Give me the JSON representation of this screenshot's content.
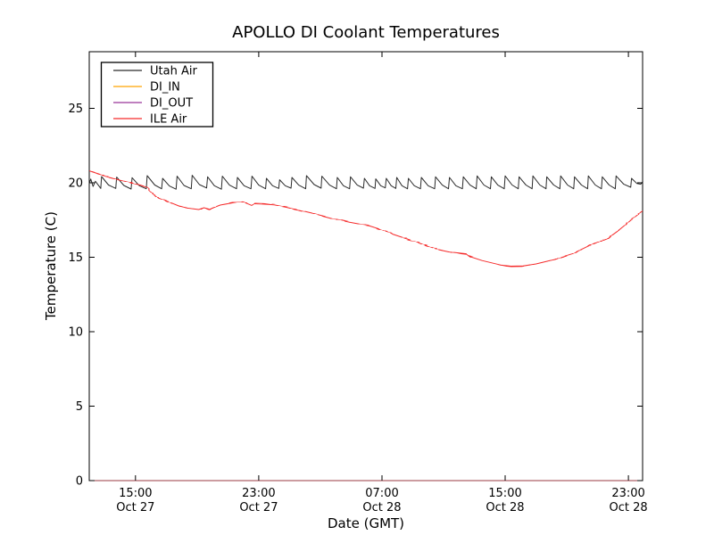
{
  "figure_background": "#ffffff",
  "chart_data": {
    "type": "line",
    "title": "APOLLO DI Coolant Temperatures",
    "xlabel": "Date (GMT)",
    "ylabel": "Temperature (C)",
    "grid": false,
    "legend_position": "upper left",
    "x_unit": "hours since Oct 27 12:00 GMT",
    "xlim": [
      0,
      35.92
    ],
    "ylim": [
      0,
      28.8
    ],
    "yticks": [
      {
        "value": 0,
        "label": "0"
      },
      {
        "value": 5,
        "label": "5"
      },
      {
        "value": 10,
        "label": "10"
      },
      {
        "value": 15,
        "label": "15"
      },
      {
        "value": 20,
        "label": "20"
      },
      {
        "value": 25,
        "label": "25"
      }
    ],
    "xticks": [
      {
        "hour": 3,
        "line1": "15:00",
        "line2": "Oct 27"
      },
      {
        "hour": 11,
        "line1": "23:00",
        "line2": "Oct 27"
      },
      {
        "hour": 19,
        "line1": "07:00",
        "line2": "Oct 28"
      },
      {
        "hour": 27,
        "line1": "15:00",
        "line2": "Oct 28"
      },
      {
        "hour": 35,
        "line1": "23:00",
        "line2": "Oct 28"
      }
    ],
    "series": [
      {
        "name": "Utah Air",
        "color": "#2b2b2b",
        "opacity": 1,
        "noisy": false,
        "points": [
          [
            0,
            19.95
          ],
          [
            0.1,
            20.25
          ],
          [
            0.25,
            19.75
          ],
          [
            0.4,
            20.1
          ],
          [
            0.75,
            19.62
          ],
          [
            0.8,
            20.42
          ],
          [
            1.25,
            19.85
          ],
          [
            1.72,
            19.62
          ],
          [
            1.78,
            20.38
          ],
          [
            2.25,
            19.82
          ],
          [
            2.72,
            19.58
          ],
          [
            2.78,
            20.34
          ],
          [
            3.25,
            19.8
          ],
          [
            3.7,
            19.6
          ],
          [
            3.76,
            20.48
          ],
          [
            4.25,
            19.85
          ],
          [
            4.7,
            19.6
          ],
          [
            4.76,
            20.3
          ],
          [
            5.2,
            19.78
          ],
          [
            5.64,
            19.57
          ],
          [
            5.7,
            20.44
          ],
          [
            6.15,
            19.82
          ],
          [
            6.62,
            19.6
          ],
          [
            6.68,
            20.5
          ],
          [
            7.15,
            19.88
          ],
          [
            7.62,
            19.65
          ],
          [
            7.68,
            20.4
          ],
          [
            8.12,
            19.8
          ],
          [
            8.58,
            19.57
          ],
          [
            8.64,
            20.44
          ],
          [
            9.1,
            19.84
          ],
          [
            9.56,
            19.6
          ],
          [
            9.62,
            20.36
          ],
          [
            10.05,
            19.8
          ],
          [
            10.5,
            19.6
          ],
          [
            10.56,
            20.44
          ],
          [
            11.0,
            19.84
          ],
          [
            11.45,
            19.6
          ],
          [
            11.5,
            20.3
          ],
          [
            11.9,
            19.8
          ],
          [
            12.3,
            19.62
          ],
          [
            12.36,
            20.2
          ],
          [
            12.72,
            19.8
          ],
          [
            13.1,
            19.64
          ],
          [
            13.16,
            20.36
          ],
          [
            13.6,
            19.84
          ],
          [
            14.05,
            19.6
          ],
          [
            14.1,
            20.48
          ],
          [
            14.6,
            19.88
          ],
          [
            15.05,
            19.64
          ],
          [
            15.1,
            20.44
          ],
          [
            15.6,
            19.84
          ],
          [
            16.05,
            19.6
          ],
          [
            16.1,
            20.36
          ],
          [
            16.5,
            19.8
          ],
          [
            16.9,
            19.6
          ],
          [
            16.96,
            20.4
          ],
          [
            17.4,
            19.84
          ],
          [
            17.8,
            19.64
          ],
          [
            17.86,
            20.3
          ],
          [
            18.2,
            19.8
          ],
          [
            18.55,
            19.62
          ],
          [
            18.6,
            20.26
          ],
          [
            18.92,
            19.8
          ],
          [
            19.22,
            19.66
          ],
          [
            19.28,
            20.3
          ],
          [
            19.6,
            19.8
          ],
          [
            19.9,
            19.62
          ],
          [
            19.96,
            20.36
          ],
          [
            20.3,
            19.8
          ],
          [
            20.66,
            19.6
          ],
          [
            20.72,
            20.3
          ],
          [
            21.1,
            19.8
          ],
          [
            21.5,
            19.6
          ],
          [
            21.56,
            20.36
          ],
          [
            22.0,
            19.8
          ],
          [
            22.42,
            19.6
          ],
          [
            22.48,
            20.4
          ],
          [
            22.92,
            19.84
          ],
          [
            23.32,
            19.6
          ],
          [
            23.38,
            20.36
          ],
          [
            23.8,
            19.8
          ],
          [
            24.22,
            19.6
          ],
          [
            24.28,
            20.4
          ],
          [
            24.72,
            19.84
          ],
          [
            25.12,
            19.6
          ],
          [
            25.18,
            20.46
          ],
          [
            25.62,
            19.85
          ],
          [
            26.04,
            19.6
          ],
          [
            26.1,
            20.4
          ],
          [
            26.52,
            19.84
          ],
          [
            26.94,
            19.6
          ],
          [
            27.0,
            20.46
          ],
          [
            27.45,
            19.85
          ],
          [
            27.85,
            19.6
          ],
          [
            27.9,
            20.4
          ],
          [
            28.35,
            19.85
          ],
          [
            28.75,
            19.6
          ],
          [
            28.8,
            20.46
          ],
          [
            29.25,
            19.85
          ],
          [
            29.65,
            19.6
          ],
          [
            29.7,
            20.4
          ],
          [
            30.15,
            19.85
          ],
          [
            30.55,
            19.6
          ],
          [
            30.6,
            20.46
          ],
          [
            31.05,
            19.85
          ],
          [
            31.45,
            19.6
          ],
          [
            31.5,
            20.4
          ],
          [
            31.95,
            19.85
          ],
          [
            32.35,
            19.6
          ],
          [
            32.4,
            20.46
          ],
          [
            32.85,
            19.85
          ],
          [
            33.25,
            19.6
          ],
          [
            33.3,
            20.4
          ],
          [
            33.75,
            19.85
          ],
          [
            34.15,
            19.6
          ],
          [
            34.2,
            20.46
          ],
          [
            34.7,
            19.9
          ],
          [
            35.15,
            19.7
          ],
          [
            35.2,
            20.3
          ],
          [
            35.55,
            19.95
          ],
          [
            35.8,
            19.9
          ],
          [
            35.95,
            20.1
          ]
        ]
      },
      {
        "name": "DI_IN",
        "color": "#ffa500",
        "opacity": 0.7,
        "noisy": false,
        "points": [
          [
            0,
            0
          ],
          [
            35.92,
            0
          ]
        ]
      },
      {
        "name": "DI_OUT",
        "color": "#800080",
        "opacity": 0.5,
        "noisy": false,
        "points": [
          [
            0,
            0
          ],
          [
            35.92,
            0
          ]
        ]
      },
      {
        "name": "ILE Air",
        "color": "#f52b2b",
        "opacity": 1,
        "noisy": true,
        "points": [
          [
            0,
            20.8
          ],
          [
            0.6,
            20.6
          ],
          [
            1.3,
            20.35
          ],
          [
            2.3,
            20.1
          ],
          [
            3.3,
            19.85
          ],
          [
            3.8,
            19.68
          ],
          [
            3.95,
            19.42
          ],
          [
            4.15,
            19.25
          ],
          [
            4.5,
            19.0
          ],
          [
            5.2,
            18.7
          ],
          [
            5.8,
            18.45
          ],
          [
            6.4,
            18.3
          ],
          [
            7.1,
            18.2
          ],
          [
            7.45,
            18.32
          ],
          [
            7.8,
            18.22
          ],
          [
            8.5,
            18.5
          ],
          [
            9.3,
            18.65
          ],
          [
            10.0,
            18.72
          ],
          [
            10.55,
            18.48
          ],
          [
            10.75,
            18.62
          ],
          [
            11.3,
            18.6
          ],
          [
            12.0,
            18.55
          ],
          [
            12.8,
            18.38
          ],
          [
            13.5,
            18.2
          ],
          [
            14.7,
            17.9
          ],
          [
            15.8,
            17.6
          ],
          [
            16.9,
            17.35
          ],
          [
            18.2,
            17.1
          ],
          [
            19.3,
            16.75
          ],
          [
            19.7,
            16.55
          ],
          [
            20.7,
            16.2
          ],
          [
            21.7,
            15.85
          ],
          [
            22.7,
            15.5
          ],
          [
            23.6,
            15.3
          ],
          [
            24.45,
            15.2
          ],
          [
            24.6,
            15.08
          ],
          [
            25.5,
            14.78
          ],
          [
            26.7,
            14.48
          ],
          [
            27.4,
            14.4
          ],
          [
            28.2,
            14.42
          ],
          [
            29.0,
            14.55
          ],
          [
            30.2,
            14.85
          ],
          [
            31.4,
            15.25
          ],
          [
            32.5,
            15.8
          ],
          [
            33.7,
            16.3
          ],
          [
            34.3,
            16.75
          ],
          [
            35.0,
            17.35
          ],
          [
            35.6,
            17.85
          ],
          [
            35.95,
            18.1
          ]
        ]
      }
    ]
  }
}
